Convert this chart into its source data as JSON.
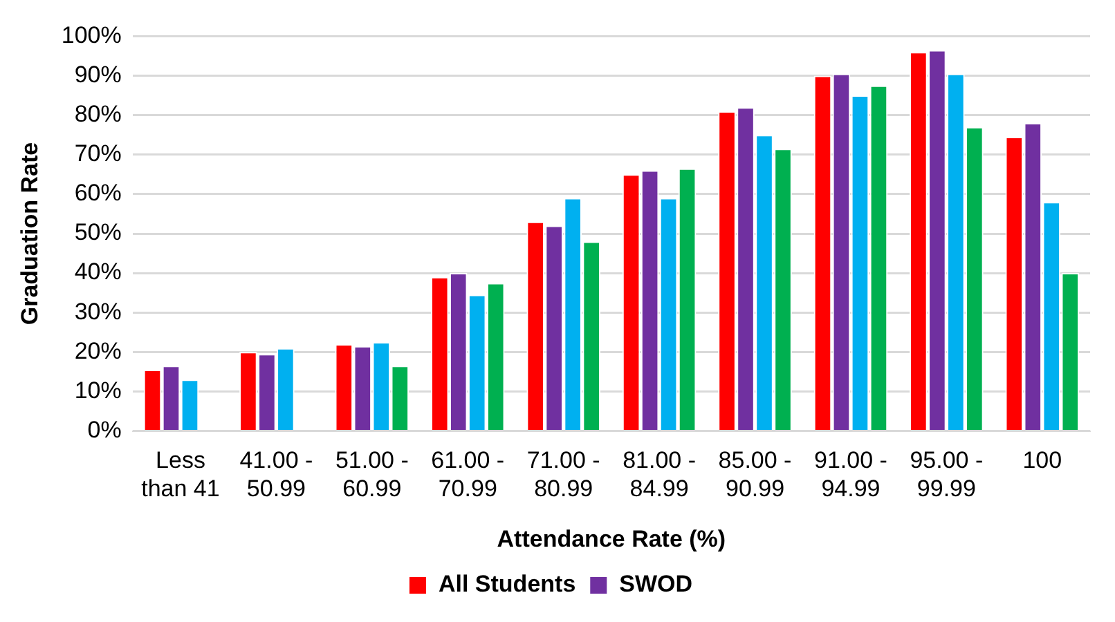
{
  "chart_data": {
    "type": "bar",
    "xlabel": "Attendance Rate (%)",
    "ylabel": "Graduation Rate",
    "categories": [
      "Less than 41",
      "41.00 - 50.99",
      "51.00 - 60.99",
      "61.00 - 70.99",
      "71.00 - 80.99",
      "81.00 - 84.99",
      "85.00 - 90.99",
      "91.00 - 94.99",
      "95.00 - 99.99",
      "100"
    ],
    "series": [
      {
        "name": "All Students",
        "color": "#ff0000",
        "values": [
          15.5,
          20,
          22,
          39,
          53,
          65,
          81,
          90,
          96,
          74.5
        ]
      },
      {
        "name": "SWOD",
        "color": "#7030a0",
        "values": [
          16.5,
          19.5,
          21.5,
          40,
          52,
          66,
          82,
          90.5,
          96.5,
          78
        ]
      },
      {
        "color": "#00b0f0",
        "values": [
          13,
          21,
          22.5,
          34.5,
          59,
          59,
          75,
          85,
          90.5,
          58
        ]
      },
      {
        "color": "#00b050",
        "values": [
          null,
          null,
          16.5,
          37.5,
          48,
          66.5,
          71.5,
          87.5,
          77,
          40
        ]
      }
    ],
    "ylim": [
      0,
      100
    ],
    "yticks": [
      {
        "value": 0,
        "label": "0%"
      },
      {
        "value": 10,
        "label": "10%"
      },
      {
        "value": 20,
        "label": "20%"
      },
      {
        "value": 30,
        "label": "30%"
      },
      {
        "value": 40,
        "label": "40%"
      },
      {
        "value": 50,
        "label": "50%"
      },
      {
        "value": 60,
        "label": "60%"
      },
      {
        "value": 70,
        "label": "70%"
      },
      {
        "value": 80,
        "label": "80%"
      },
      {
        "value": 90,
        "label": "90%"
      },
      {
        "value": 100,
        "label": "100%"
      }
    ],
    "grid": "y",
    "legend": "bottom"
  }
}
